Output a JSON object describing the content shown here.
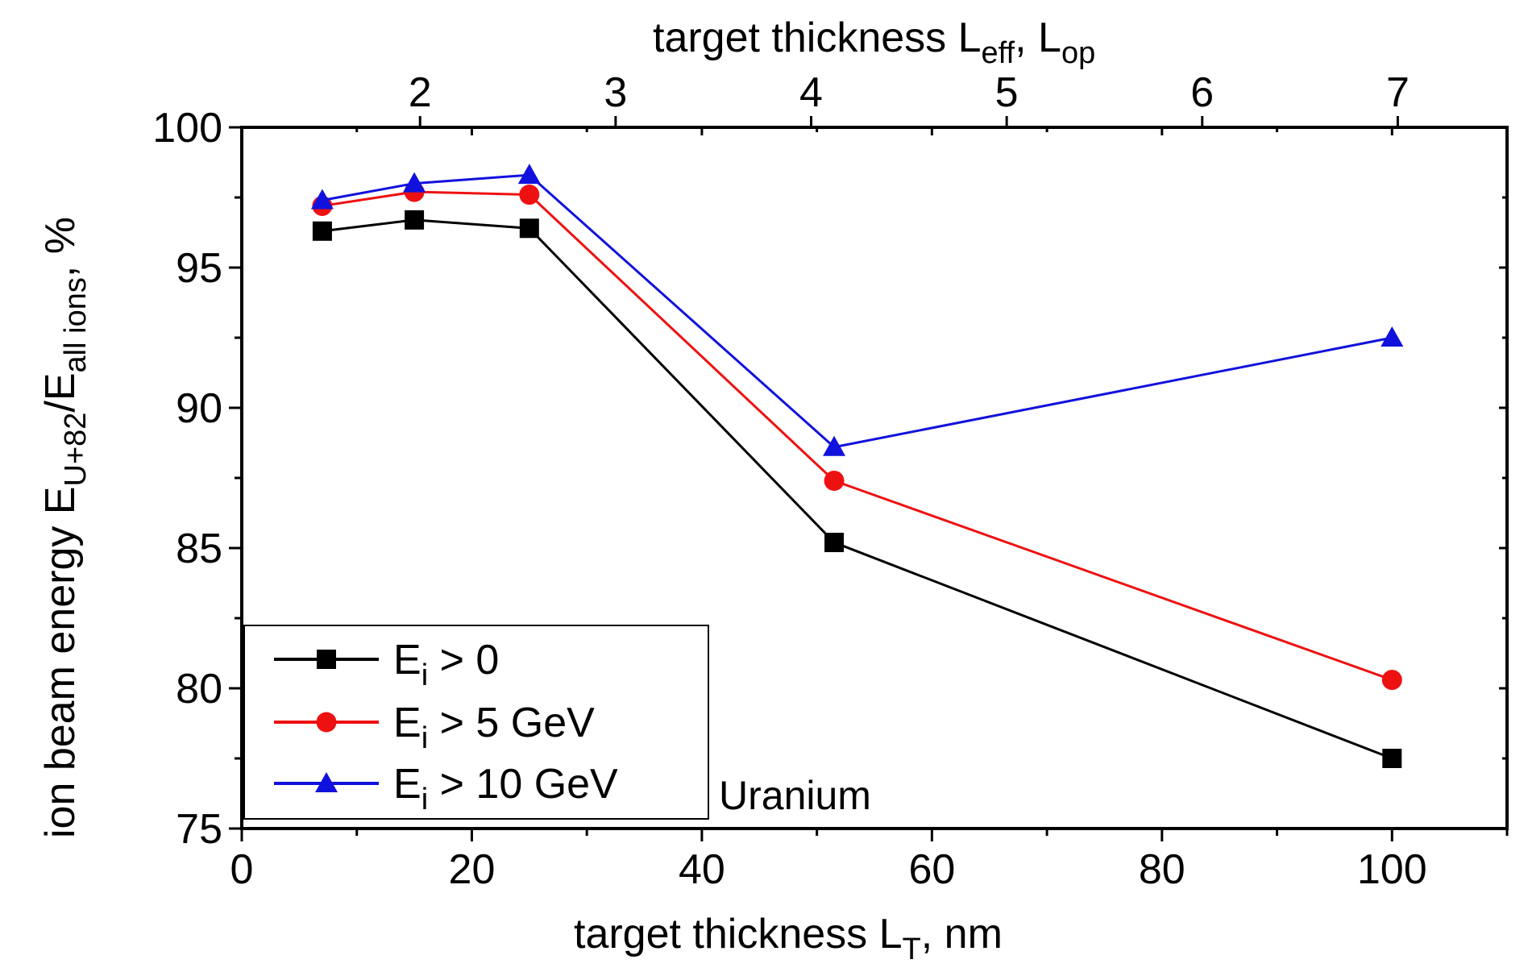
{
  "chart_data": {
    "type": "line",
    "xlabel": {
      "main": "target thickness L",
      "sub": "T",
      "unit": ", nm"
    },
    "top_xlabel": {
      "main": "target thickness L",
      "sub1": "eff",
      "sep": ", L",
      "sub2": "op"
    },
    "ylabel": {
      "part1": "ion beam energy E",
      "sub1": "U+82",
      "part2": "/E",
      "sub2": "all ions",
      "unit": ", %"
    },
    "xlim": [
      0,
      110
    ],
    "ylim": [
      75,
      100
    ],
    "x_ticks": [
      0,
      20,
      40,
      60,
      80,
      100
    ],
    "y_ticks": [
      75,
      80,
      85,
      90,
      95,
      100
    ],
    "top_ticks": [
      {
        "label": "2",
        "x": 15.5
      },
      {
        "label": "3",
        "x": 32.5
      },
      {
        "label": "4",
        "x": 49.5
      },
      {
        "label": "5",
        "x": 66.5
      },
      {
        "label": "6",
        "x": 83.5
      },
      {
        "label": "7",
        "x": 100.5
      }
    ],
    "series": [
      {
        "name": "E_i > 0",
        "legend_main": "E",
        "legend_sub": "i",
        "legend_rest": " > 0",
        "color": "#000000",
        "marker": "square",
        "x": [
          7,
          15,
          25,
          51.5,
          100
        ],
        "y": [
          96.3,
          96.7,
          96.4,
          85.2,
          77.5
        ]
      },
      {
        "name": "E_i > 5 GeV",
        "legend_main": "E",
        "legend_sub": "i",
        "legend_rest": " > 5 GeV",
        "color": "#ee1111",
        "marker": "circle",
        "x": [
          7,
          15,
          25,
          51.5,
          100
        ],
        "y": [
          97.2,
          97.7,
          97.6,
          87.4,
          80.3
        ]
      },
      {
        "name": "E_i > 10 GeV",
        "legend_main": "E",
        "legend_sub": "i",
        "legend_rest": " > 10 GeV",
        "color": "#1111dd",
        "marker": "triangle",
        "x": [
          7,
          15,
          25,
          51.5,
          100
        ],
        "y": [
          97.4,
          98.0,
          98.3,
          88.6,
          92.5
        ]
      }
    ],
    "annotation": "Uranium",
    "legend_position": "bottom-left"
  }
}
